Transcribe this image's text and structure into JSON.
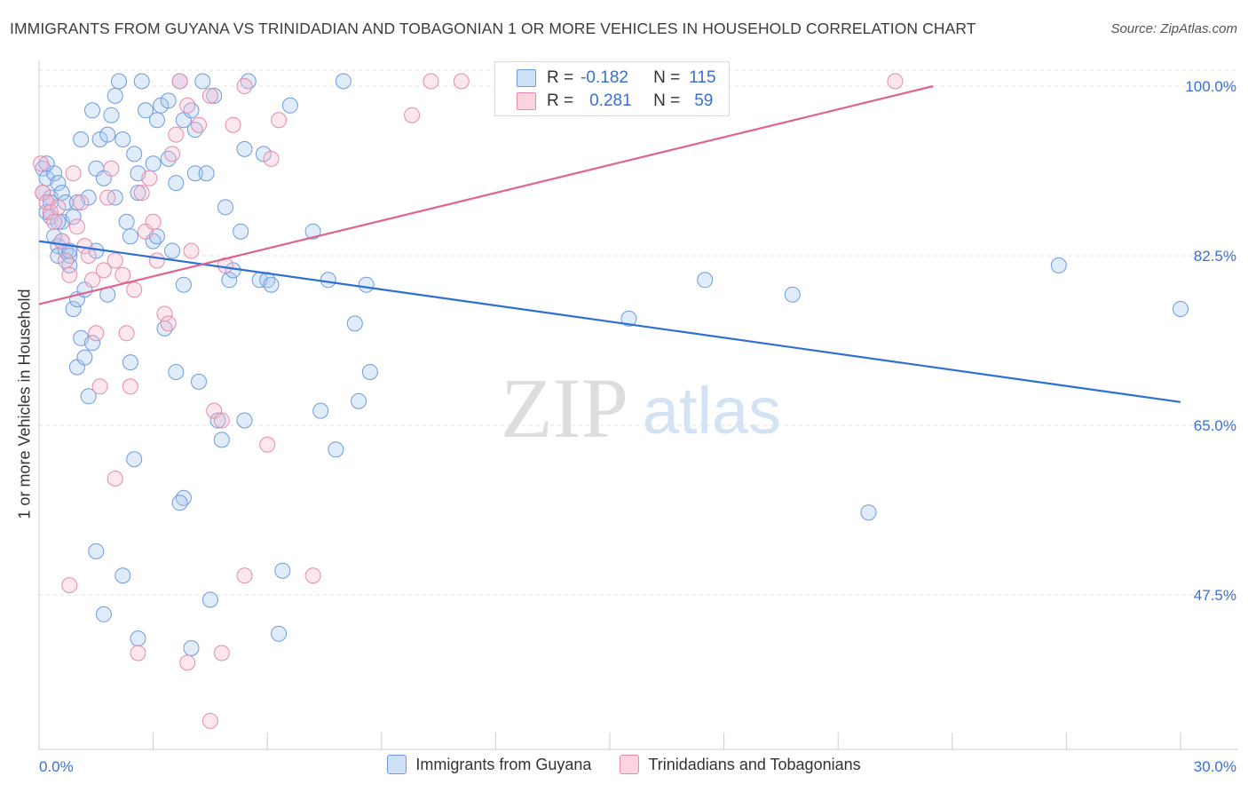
{
  "title": "IMMIGRANTS FROM GUYANA VS TRINIDADIAN AND TOBAGONIAN 1 OR MORE VEHICLES IN HOUSEHOLD CORRELATION CHART",
  "source": "Source: ZipAtlas.com",
  "watermark": {
    "zip": "ZIP",
    "atlas": "atlas"
  },
  "stats": [
    {
      "r_label": "R =",
      "r_value": "-0.182",
      "n_label": "N =",
      "n_value": "115",
      "color": "#a9c8f0",
      "border": "#6d9be0"
    },
    {
      "r_label": "R =",
      "r_value": "0.281",
      "n_label": "N =",
      "n_value": "59",
      "color": "#f7b9cd",
      "border": "#e88aa8"
    }
  ],
  "legend": [
    {
      "label": "Immigrants from Guyana",
      "color": "#a9c8f0",
      "border": "#6d9be0"
    },
    {
      "label": "Trinidadians and Tobagonians",
      "color": "#f7b9cd",
      "border": "#e88aa8"
    }
  ],
  "chart_data": {
    "type": "scatter",
    "title": "IMMIGRANTS FROM GUYANA VS TRINIDADIAN AND TOBAGONIAN 1 OR MORE VEHICLES IN HOUSEHOLD CORRELATION CHART",
    "xlabel": "",
    "ylabel": "1 or more Vehicles in Household",
    "xlim": [
      0,
      30
    ],
    "ylim": [
      32,
      101
    ],
    "x_tick_labels": [
      "0.0%",
      "30.0%"
    ],
    "y_ticks": [
      47.5,
      65.0,
      82.5,
      100.0
    ],
    "y_tick_labels": [
      "47.5%",
      "65.0%",
      "82.5%",
      "100.0%"
    ],
    "grid": true,
    "legend_position": "bottom",
    "series": [
      {
        "name": "Immigrants from Guyana",
        "color": "#6d9be0",
        "trend": {
          "x": [
            0,
            30
          ],
          "y": [
            84.0,
            67.4
          ]
        },
        "points": [
          [
            0.1,
            91.5
          ],
          [
            0.1,
            89.0
          ],
          [
            0.2,
            90.5
          ],
          [
            0.2,
            87.0
          ],
          [
            0.3,
            88.5
          ],
          [
            0.3,
            86.5
          ],
          [
            0.4,
            91.0
          ],
          [
            0.4,
            84.5
          ],
          [
            0.5,
            90.0
          ],
          [
            0.5,
            83.5
          ],
          [
            0.5,
            82.5
          ],
          [
            0.6,
            89.0
          ],
          [
            0.6,
            86.0
          ],
          [
            0.7,
            88.0
          ],
          [
            0.7,
            83.0
          ],
          [
            0.8,
            82.5
          ],
          [
            0.8,
            81.5
          ],
          [
            0.9,
            77.0
          ],
          [
            1.0,
            78.0
          ],
          [
            1.1,
            74.0
          ],
          [
            1.0,
            71.0
          ],
          [
            1.2,
            72.0
          ],
          [
            1.3,
            68.0
          ],
          [
            1.4,
            73.5
          ],
          [
            1.1,
            94.5
          ],
          [
            1.3,
            88.5
          ],
          [
            1.4,
            97.5
          ],
          [
            1.5,
            91.5
          ],
          [
            1.6,
            94.5
          ],
          [
            1.7,
            90.5
          ],
          [
            1.8,
            95.0
          ],
          [
            1.9,
            97.0
          ],
          [
            2.0,
            99.0
          ],
          [
            2.0,
            88.5
          ],
          [
            2.1,
            100.5
          ],
          [
            2.2,
            94.5
          ],
          [
            2.3,
            86.0
          ],
          [
            2.4,
            84.5
          ],
          [
            2.4,
            71.5
          ],
          [
            2.5,
            93.0
          ],
          [
            2.6,
            91.0
          ],
          [
            2.6,
            89.0
          ],
          [
            2.7,
            100.5
          ],
          [
            2.8,
            97.5
          ],
          [
            3.0,
            92.0
          ],
          [
            3.0,
            84.0
          ],
          [
            3.1,
            84.5
          ],
          [
            3.1,
            96.5
          ],
          [
            3.2,
            98.0
          ],
          [
            3.3,
            75.0
          ],
          [
            3.4,
            98.5
          ],
          [
            3.4,
            92.5
          ],
          [
            3.5,
            83.0
          ],
          [
            3.6,
            70.5
          ],
          [
            3.6,
            90.0
          ],
          [
            3.7,
            100.5
          ],
          [
            3.8,
            96.5
          ],
          [
            3.8,
            79.5
          ],
          [
            4.0,
            97.5
          ],
          [
            4.1,
            95.5
          ],
          [
            4.1,
            91.0
          ],
          [
            4.2,
            69.5
          ],
          [
            4.3,
            100.5
          ],
          [
            4.4,
            91.0
          ],
          [
            4.6,
            99.0
          ],
          [
            4.7,
            65.5
          ],
          [
            4.8,
            63.5
          ],
          [
            4.9,
            87.5
          ],
          [
            5.0,
            80.0
          ],
          [
            5.1,
            81.0
          ],
          [
            5.3,
            85.0
          ],
          [
            5.4,
            65.5
          ],
          [
            5.4,
            93.5
          ],
          [
            5.5,
            100.5
          ],
          [
            5.8,
            80.0
          ],
          [
            5.9,
            93.0
          ],
          [
            6.0,
            80.0
          ],
          [
            6.1,
            79.5
          ],
          [
            6.6,
            98.0
          ],
          [
            7.2,
            85.0
          ],
          [
            7.4,
            66.5
          ],
          [
            7.6,
            80.0
          ],
          [
            7.8,
            62.5
          ],
          [
            8.3,
            75.5
          ],
          [
            8.4,
            67.5
          ],
          [
            8.7,
            70.5
          ],
          [
            8.0,
            100.5
          ],
          [
            8.6,
            79.5
          ],
          [
            2.5,
            61.5
          ],
          [
            3.8,
            57.5
          ],
          [
            3.7,
            57.0
          ],
          [
            1.5,
            52.0
          ],
          [
            2.2,
            49.5
          ],
          [
            1.7,
            45.5
          ],
          [
            2.6,
            43.0
          ],
          [
            4.0,
            42.0
          ],
          [
            4.5,
            47.0
          ],
          [
            6.4,
            50.0
          ],
          [
            6.3,
            43.5
          ],
          [
            15.5,
            76.0
          ],
          [
            17.5,
            80.0
          ],
          [
            19.8,
            78.5
          ],
          [
            21.8,
            56.0
          ],
          [
            26.8,
            81.5
          ],
          [
            30.0,
            77.0
          ],
          [
            0.2,
            92.0
          ],
          [
            0.3,
            88.0
          ],
          [
            0.5,
            86.0
          ],
          [
            0.6,
            84.0
          ],
          [
            0.8,
            83.0
          ],
          [
            0.9,
            86.5
          ],
          [
            1.0,
            88.0
          ],
          [
            1.2,
            79.0
          ],
          [
            1.5,
            83.0
          ],
          [
            1.8,
            78.5
          ]
        ]
      },
      {
        "name": "Trinidadians and Tobagonians",
        "color": "#e88aa8",
        "trend": {
          "x": [
            0,
            23.5
          ],
          "y": [
            77.5,
            100.0
          ]
        },
        "points": [
          [
            0.05,
            92.0
          ],
          [
            0.1,
            89.0
          ],
          [
            0.2,
            88.0
          ],
          [
            0.3,
            87.0
          ],
          [
            0.4,
            86.0
          ],
          [
            0.5,
            87.5
          ],
          [
            0.6,
            84.0
          ],
          [
            0.7,
            82.0
          ],
          [
            0.8,
            80.5
          ],
          [
            0.9,
            91.0
          ],
          [
            1.0,
            85.5
          ],
          [
            1.1,
            88.0
          ],
          [
            1.2,
            83.5
          ],
          [
            1.3,
            82.5
          ],
          [
            1.4,
            80.0
          ],
          [
            1.5,
            74.5
          ],
          [
            1.6,
            69.0
          ],
          [
            1.7,
            81.0
          ],
          [
            1.8,
            88.5
          ],
          [
            1.9,
            91.5
          ],
          [
            2.0,
            82.0
          ],
          [
            2.2,
            80.5
          ],
          [
            2.3,
            74.5
          ],
          [
            2.4,
            69.0
          ],
          [
            2.5,
            79.0
          ],
          [
            2.7,
            89.0
          ],
          [
            2.8,
            85.0
          ],
          [
            2.9,
            90.5
          ],
          [
            3.0,
            86.0
          ],
          [
            3.1,
            82.0
          ],
          [
            3.3,
            76.5
          ],
          [
            3.4,
            75.5
          ],
          [
            3.5,
            93.0
          ],
          [
            3.6,
            95.0
          ],
          [
            3.7,
            100.5
          ],
          [
            3.9,
            98.0
          ],
          [
            4.0,
            83.0
          ],
          [
            4.2,
            96.0
          ],
          [
            4.5,
            99.0
          ],
          [
            4.6,
            66.5
          ],
          [
            4.8,
            65.5
          ],
          [
            4.9,
            81.5
          ],
          [
            5.1,
            96.0
          ],
          [
            5.4,
            100.0
          ],
          [
            6.0,
            63.0
          ],
          [
            6.1,
            92.5
          ],
          [
            6.3,
            96.5
          ],
          [
            7.2,
            49.5
          ],
          [
            0.8,
            48.5
          ],
          [
            2.0,
            59.5
          ],
          [
            2.6,
            41.5
          ],
          [
            3.9,
            40.5
          ],
          [
            4.8,
            41.5
          ],
          [
            5.4,
            49.5
          ],
          [
            4.5,
            34.5
          ],
          [
            9.8,
            97.0
          ],
          [
            10.3,
            100.5
          ],
          [
            11.1,
            100.5
          ],
          [
            22.5,
            100.5
          ]
        ]
      }
    ]
  }
}
